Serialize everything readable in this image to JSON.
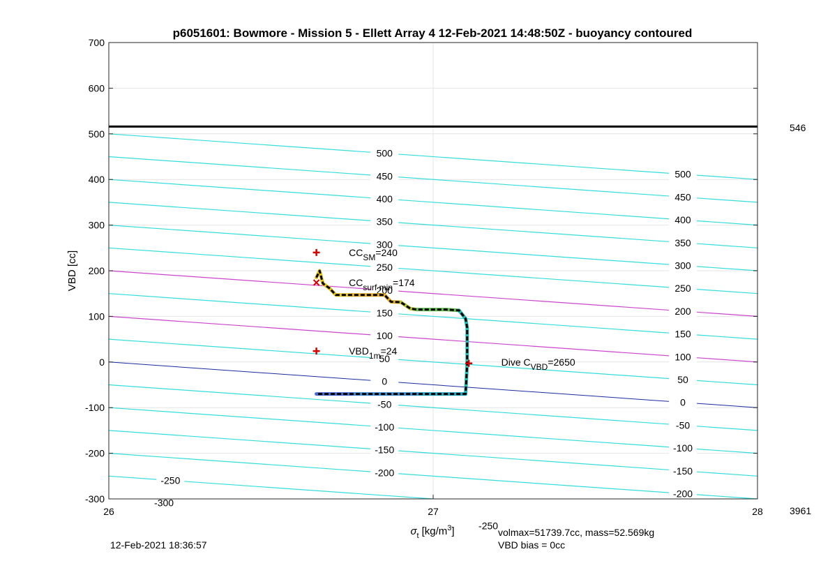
{
  "chart_data": {
    "type": "line",
    "title": "p6051601: Bowmore - Mission 5 - Ellett Array 4 12-Feb-2021 14:48:50Z - buoyancy contoured",
    "xlabel": {
      "symbol": "σ",
      "sub": "t",
      "unit": "[kg/m",
      "sup": "3",
      "close": "]"
    },
    "ylabel": "VBD [cc]",
    "xlim": [
      26,
      28
    ],
    "ylim": [
      -300,
      700
    ],
    "x_ticks": [
      "26",
      "27",
      "28"
    ],
    "y_ticks": [
      "-300",
      "-200",
      "-100",
      "0",
      "100",
      "200",
      "300",
      "400",
      "500",
      "600",
      "700"
    ],
    "grid": true,
    "max_line": {
      "vbd": 516,
      "right_label": "546"
    },
    "bottom_right_label": "3961",
    "contour_slope_per_sigma": -50,
    "contour_levels": [
      -300,
      -250,
      -200,
      -150,
      -100,
      -50,
      0,
      50,
      100,
      150,
      200,
      250,
      300,
      350,
      400,
      450,
      500
    ],
    "contour_labels_left": [
      {
        "text": "500",
        "x": 26.85,
        "y": 500
      },
      {
        "text": "450",
        "x": 26.85,
        "y": 450
      },
      {
        "text": "400",
        "x": 26.85,
        "y": 400
      },
      {
        "text": "350",
        "x": 26.85,
        "y": 350
      },
      {
        "text": "300",
        "x": 26.85,
        "y": 300
      },
      {
        "text": "250",
        "x": 26.85,
        "y": 250
      },
      {
        "text": "200",
        "x": 26.85,
        "y": 200
      },
      {
        "text": "150",
        "x": 26.85,
        "y": 150
      },
      {
        "text": "100",
        "x": 26.85,
        "y": 100
      },
      {
        "text": "50",
        "x": 26.85,
        "y": 50
      },
      {
        "text": "0",
        "x": 26.85,
        "y": 0
      },
      {
        "text": "-50",
        "x": 26.85,
        "y": -50
      },
      {
        "text": "-100",
        "x": 26.85,
        "y": -100
      },
      {
        "text": "-150",
        "x": 26.85,
        "y": -150
      },
      {
        "text": "-200",
        "x": 26.85,
        "y": -200
      },
      {
        "text": "-250",
        "x": 26.19,
        "y": -250
      },
      {
        "text": "-300",
        "x": 26.17,
        "y": -300
      },
      {
        "text": "-250",
        "x": 27.17,
        "y": -300
      }
    ],
    "contour_labels_right": [
      {
        "text": "500",
        "x": 27.77,
        "y": 500
      },
      {
        "text": "450",
        "x": 27.77,
        "y": 450
      },
      {
        "text": "400",
        "x": 27.77,
        "y": 400
      },
      {
        "text": "350",
        "x": 27.77,
        "y": 350
      },
      {
        "text": "300",
        "x": 27.77,
        "y": 300
      },
      {
        "text": "250",
        "x": 27.77,
        "y": 250
      },
      {
        "text": "200",
        "x": 27.77,
        "y": 200
      },
      {
        "text": "150",
        "x": 27.77,
        "y": 150
      },
      {
        "text": "100",
        "x": 27.77,
        "y": 100
      },
      {
        "text": "50",
        "x": 27.77,
        "y": 50
      },
      {
        "text": "0",
        "x": 27.77,
        "y": 0
      },
      {
        "text": "-50",
        "x": 27.77,
        "y": -50
      },
      {
        "text": "-100",
        "x": 27.77,
        "y": -100
      },
      {
        "text": "-150",
        "x": 27.77,
        "y": -150
      },
      {
        "text": "-200",
        "x": 27.77,
        "y": -200
      }
    ],
    "dive_profile": {
      "x": [
        26.64,
        26.65,
        26.66,
        26.68,
        26.7,
        26.75,
        26.8,
        26.85,
        26.87,
        26.9,
        26.93,
        26.95,
        27.0,
        27.04,
        27.08,
        27.1,
        27.105,
        27.105,
        27.1,
        27.05,
        26.95,
        26.85,
        26.75,
        26.65,
        26.64
      ],
      "y": [
        185,
        200,
        172,
        162,
        147,
        147,
        147,
        147,
        132,
        131,
        117,
        115,
        115,
        115,
        113,
        95,
        75,
        -3,
        -70,
        -70,
        -70,
        -70,
        -70,
        -70,
        -70
      ],
      "color_segments": [
        {
          "from": 0,
          "to": 5,
          "color": "#e6c51e"
        },
        {
          "from": 5,
          "to": 9,
          "color": "#e6ad25"
        },
        {
          "from": 9,
          "to": 11,
          "color": "#b4c232"
        },
        {
          "from": 11,
          "to": 14,
          "color": "#66bf56"
        },
        {
          "from": 14,
          "to": 18,
          "color": "#28b9b0"
        },
        {
          "from": 18,
          "to": 20,
          "color": "#22a6c2"
        },
        {
          "from": 20,
          "to": 22,
          "color": "#3d8ccf"
        },
        {
          "from": 22,
          "to": 24,
          "color": "#4a6ad2"
        }
      ]
    },
    "markers": [
      {
        "type": "plus",
        "x": 26.64,
        "y": 240,
        "color": "#d40000"
      },
      {
        "type": "cross",
        "x": 26.64,
        "y": 174,
        "color": "#d40000"
      },
      {
        "type": "plus",
        "x": 26.64,
        "y": 24,
        "color": "#d40000"
      },
      {
        "type": "plus",
        "x": 27.11,
        "y": -3,
        "color": "#d40000"
      }
    ],
    "annotations": [
      {
        "main": "CC",
        "sub": "SM",
        "value": "=240",
        "x": 26.74,
        "y": 240
      },
      {
        "main": "CC",
        "sub": "surf min",
        "value": "=174",
        "x": 26.74,
        "y": 174
      },
      {
        "main": "VBD",
        "sub": "1m",
        "value": "=24",
        "x": 26.74,
        "y": 24
      },
      {
        "main": "Dive C",
        "sub": "VBD",
        "value": "=2650",
        "x": 27.21,
        "y": 0
      }
    ],
    "colors": {
      "contour": "#33dddd",
      "contour_magenta": "#cc44cc",
      "contour_zero": "#1a2aa0",
      "max_line": "#000000",
      "grid": "#e4e4e4"
    }
  },
  "footer": {
    "timestamp": "12-Feb-2021 18:36:57",
    "volmax": "volmax=51739.7cc, mass=52.569kg",
    "bias": "VBD bias = 0cc"
  }
}
